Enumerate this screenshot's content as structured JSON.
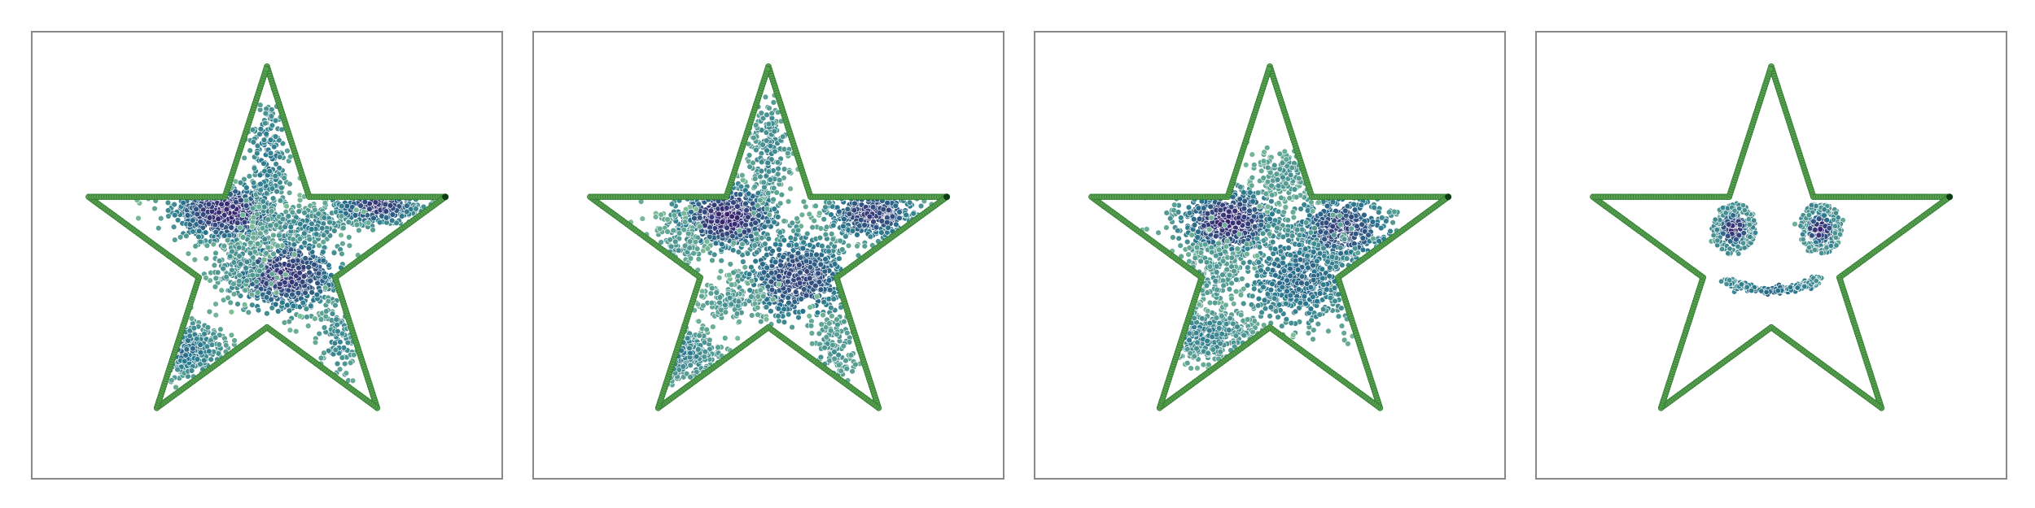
{
  "chart_data": {
    "type": "scatter",
    "colors": {
      "outline_point": "#5aa050",
      "outline_point_edge": "#2f7d32",
      "outline_endpoint": "#0b3d14",
      "density_high": "#3b1f6e",
      "density_mid": "#2a788e",
      "density_low": "#7fbf98",
      "point_edge": "#ffffff"
    },
    "outline": {
      "description_free": true,
      "vertices": [
        [
          0,
          1
        ],
        [
          0.2245,
          0.309
        ],
        [
          0.9511,
          0.309
        ],
        [
          0.3633,
          -0.118
        ],
        [
          0.5878,
          -0.809
        ],
        [
          0,
          -0.382
        ],
        [
          -0.5878,
          -0.809
        ],
        [
          -0.3633,
          -0.118
        ],
        [
          -0.9511,
          0.309
        ],
        [
          -0.2245,
          0.309
        ]
      ],
      "xlim": [
        -1.25,
        1.25
      ],
      "ylim": [
        -1.18,
        1.18
      ]
    },
    "panels": [
      {
        "clusters": [
          {
            "x": -0.22,
            "y": 0.23,
            "sx": 0.14,
            "sy": 0.08,
            "n": 700,
            "d": 0.95
          },
          {
            "x": 0.1,
            "y": -0.1,
            "sx": 0.15,
            "sy": 0.1,
            "n": 650,
            "d": 0.9
          },
          {
            "x": 0.58,
            "y": 0.26,
            "sx": 0.12,
            "sy": 0.05,
            "n": 380,
            "d": 0.85
          },
          {
            "x": -0.45,
            "y": -0.5,
            "sx": 0.12,
            "sy": 0.08,
            "n": 280,
            "d": 0.55
          },
          {
            "x": 0.0,
            "y": 0.5,
            "sx": 0.06,
            "sy": 0.18,
            "n": 200,
            "d": 0.5
          },
          {
            "x": 0.22,
            "y": 0.16,
            "sx": 0.13,
            "sy": 0.05,
            "n": 160,
            "d": 0.45
          },
          {
            "x": 0.38,
            "y": -0.45,
            "sx": 0.06,
            "sy": 0.12,
            "n": 110,
            "d": 0.4
          },
          {
            "x": -0.15,
            "y": -0.05,
            "sx": 0.1,
            "sy": 0.08,
            "n": 120,
            "d": 0.35
          }
        ]
      },
      {
        "clusters": [
          {
            "x": -0.22,
            "y": 0.2,
            "sx": 0.14,
            "sy": 0.09,
            "n": 650,
            "d": 0.95
          },
          {
            "x": 0.15,
            "y": -0.12,
            "sx": 0.15,
            "sy": 0.12,
            "n": 600,
            "d": 0.8
          },
          {
            "x": 0.55,
            "y": 0.22,
            "sx": 0.12,
            "sy": 0.07,
            "n": 380,
            "d": 0.85
          },
          {
            "x": -0.5,
            "y": -0.52,
            "sx": 0.12,
            "sy": 0.07,
            "n": 280,
            "d": 0.5
          },
          {
            "x": 0.0,
            "y": 0.55,
            "sx": 0.06,
            "sy": 0.16,
            "n": 200,
            "d": 0.4
          },
          {
            "x": 0.35,
            "y": -0.5,
            "sx": 0.08,
            "sy": 0.12,
            "n": 120,
            "d": 0.3
          },
          {
            "x": -0.2,
            "y": -0.25,
            "sx": 0.1,
            "sy": 0.06,
            "n": 120,
            "d": 0.3
          },
          {
            "x": -0.48,
            "y": 0.05,
            "sx": 0.07,
            "sy": 0.08,
            "n": 90,
            "d": 0.3
          }
        ]
      },
      {
        "clusters": [
          {
            "x": -0.22,
            "y": 0.18,
            "sx": 0.13,
            "sy": 0.09,
            "n": 650,
            "d": 0.95
          },
          {
            "x": 0.38,
            "y": 0.14,
            "sx": 0.14,
            "sy": 0.1,
            "n": 420,
            "d": 0.8
          },
          {
            "x": 0.15,
            "y": -0.12,
            "sx": 0.18,
            "sy": 0.14,
            "n": 550,
            "d": 0.6
          },
          {
            "x": -0.35,
            "y": -0.42,
            "sx": 0.14,
            "sy": 0.07,
            "n": 350,
            "d": 0.45
          },
          {
            "x": 0.1,
            "y": 0.42,
            "sx": 0.1,
            "sy": 0.08,
            "n": 150,
            "d": 0.3
          },
          {
            "x": -0.3,
            "y": -0.1,
            "sx": 0.1,
            "sy": 0.1,
            "n": 150,
            "d": 0.3
          }
        ]
      },
      {
        "rings": [
          {
            "x": -0.2,
            "y": 0.14,
            "r": 0.12,
            "n": 140,
            "d": 0.35
          },
          {
            "x": 0.26,
            "y": 0.14,
            "r": 0.12,
            "n": 140,
            "d": 0.35
          }
        ],
        "clusters": [
          {
            "x": -0.2,
            "y": 0.14,
            "sx": 0.045,
            "sy": 0.045,
            "n": 150,
            "d": 0.95
          },
          {
            "x": 0.26,
            "y": 0.14,
            "sx": 0.045,
            "sy": 0.045,
            "n": 150,
            "d": 0.95
          }
        ],
        "arcs": [
          {
            "x": 0.0,
            "y": -0.05,
            "r": 0.3,
            "a0": 215,
            "a1": 330,
            "n": 260,
            "d": 0.55
          }
        ]
      }
    ]
  }
}
